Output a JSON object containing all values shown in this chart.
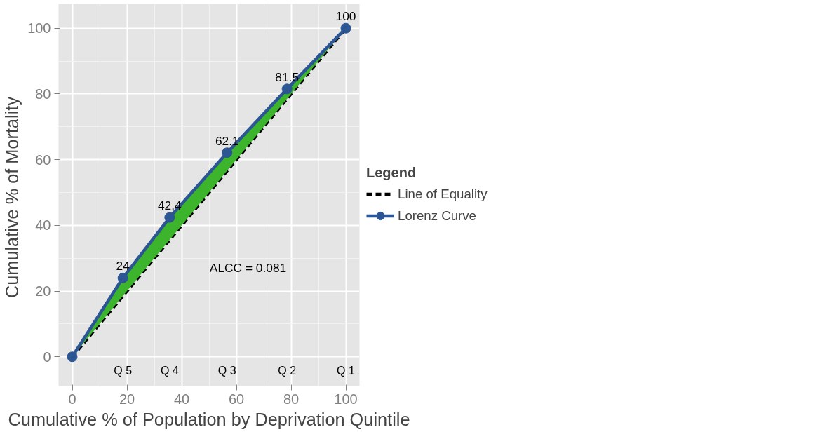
{
  "chart_data": {
    "type": "line",
    "xlabel": "Cumulative % of Population by Deprivation Quintile",
    "ylabel": "Cumulative % of  Mortality",
    "legend_title": "Legend",
    "xlim": [
      -5,
      105
    ],
    "ylim": [
      -8.9,
      107.4
    ],
    "xticks": [
      0,
      20,
      40,
      60,
      80,
      100
    ],
    "yticks": [
      0,
      20,
      40,
      60,
      80,
      100
    ],
    "series": [
      {
        "name": "Line of Equality",
        "color": "#000000",
        "x": [
          0,
          100
        ],
        "values": [
          0,
          100
        ],
        "line_style": "dashed",
        "marker": "none"
      },
      {
        "name": "Lorenz Curve",
        "color": "#2b5693",
        "x": [
          0,
          18.5,
          35.6,
          56.6,
          78.5,
          100
        ],
        "values": [
          0,
          24,
          42.4,
          62.1,
          81.5,
          100
        ],
        "lower": [
          0,
          18.5,
          35.6,
          56.6,
          78.5,
          100
        ],
        "upper": [
          0,
          24,
          42.4,
          62.1,
          81.5,
          100
        ],
        "value_labels": [
          null,
          "24",
          "42.4",
          "62.1",
          "81.5",
          "100"
        ],
        "line_style": "solid",
        "marker": "circle"
      }
    ],
    "annotations": [
      "ALCC =  0.081",
      "Q 5",
      "Q 4",
      "Q 3",
      "Q 2",
      "Q 1"
    ],
    "grid": true,
    "legend": "right"
  }
}
